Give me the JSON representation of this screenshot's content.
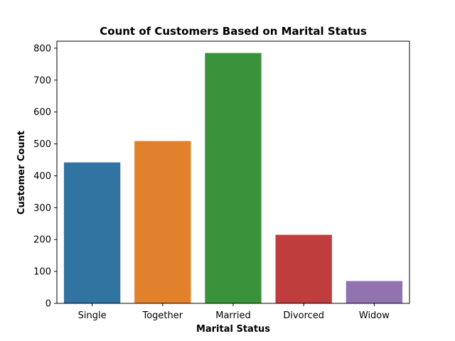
{
  "chart_data": {
    "type": "bar",
    "title": "Count of Customers Based on Marital Status",
    "xlabel": "Marital Status",
    "ylabel": "Customer Count",
    "categories": [
      "Single",
      "Together",
      "Married",
      "Divorced",
      "Widow"
    ],
    "values": [
      442,
      509,
      785,
      215,
      70
    ],
    "colors": [
      "#3274a1",
      "#e1812c",
      "#3a923a",
      "#c03d3e",
      "#9372b2"
    ],
    "ylim": [
      0,
      822
    ],
    "yticks": [
      0,
      100,
      200,
      300,
      400,
      500,
      600,
      700,
      800
    ],
    "grid": false,
    "legend": "none"
  }
}
